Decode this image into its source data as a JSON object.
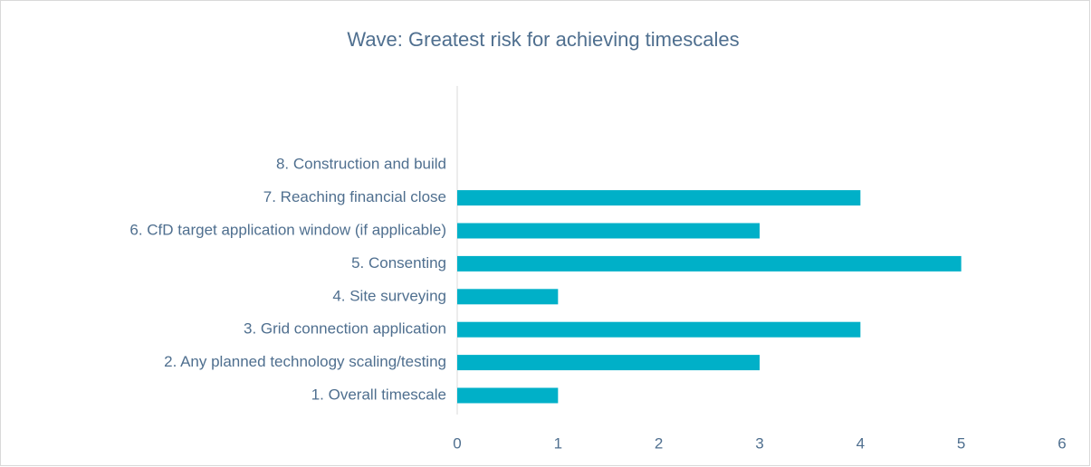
{
  "chart_data": {
    "type": "bar",
    "orientation": "horizontal",
    "title": "Wave: Greatest risk for achieving timescales",
    "categories": [
      "1. Overall timescale",
      "2. Any planned technology scaling/testing",
      "3. Grid connection application",
      "4. Site surveying",
      "5. Consenting",
      "6. CfD target application window (if applicable)",
      "7. Reaching financial close",
      "8. Construction and build"
    ],
    "values": [
      1,
      3,
      4,
      1,
      5,
      3,
      4,
      0
    ],
    "color": "#00b0c8",
    "xlim": [
      0,
      6
    ],
    "xticks": [
      0,
      1,
      2,
      3,
      4,
      5,
      6
    ],
    "grid": false
  }
}
